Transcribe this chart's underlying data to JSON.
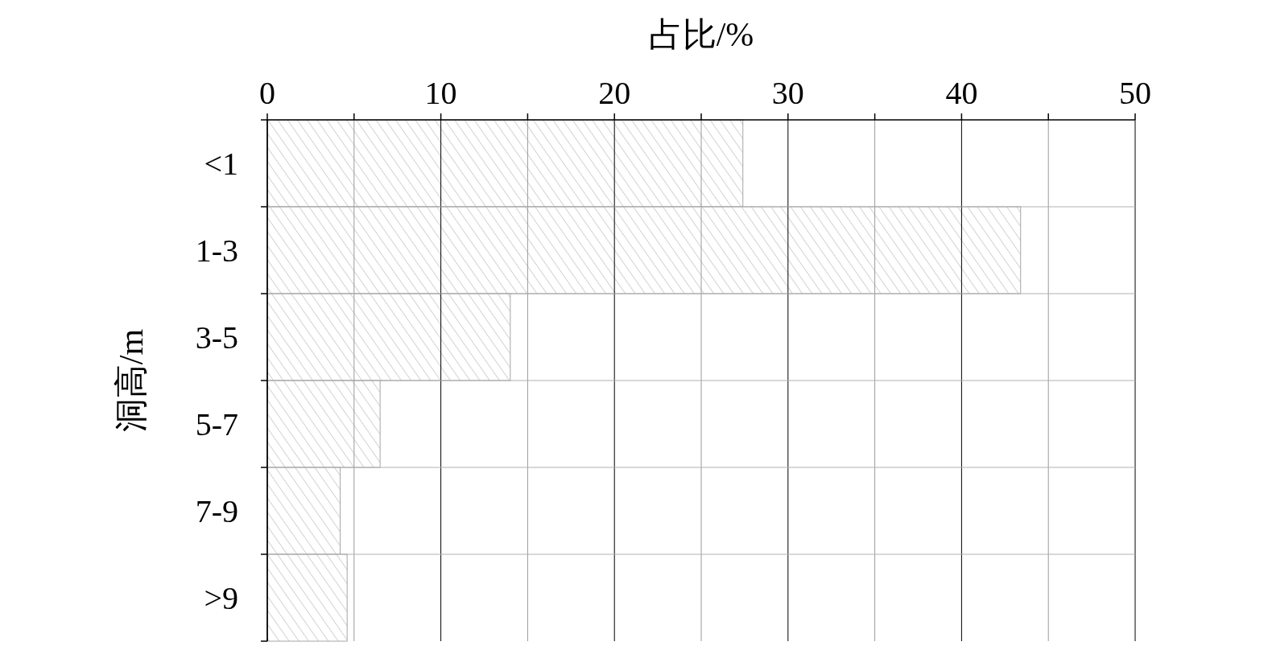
{
  "chart_data": {
    "type": "bar",
    "orientation": "horizontal",
    "xlabel": "占比/%",
    "ylabel": "洞高/m",
    "categories": [
      "<1",
      "1-3",
      "3-5",
      "5-7",
      "7-9",
      ">9"
    ],
    "values": [
      27.4,
      43.4,
      14.0,
      6.5,
      4.2,
      4.6
    ],
    "color": "#a6a6a6",
    "xlim": [
      0,
      50
    ],
    "xticks": [
      0,
      {
        "value": 5,
        "label": null
      },
      10,
      {
        "value": 15,
        "label": null
      },
      20,
      {
        "value": 25,
        "label": null
      },
      30,
      {
        "value": 35,
        "label": null
      },
      40,
      {
        "value": 45,
        "label": null
      },
      50
    ],
    "grid": true
  }
}
